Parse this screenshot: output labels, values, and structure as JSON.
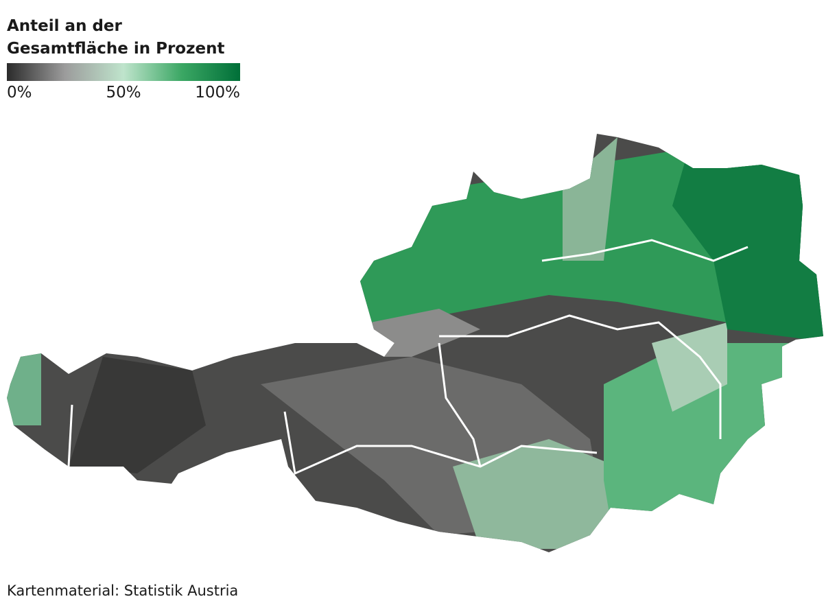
{
  "title_lines": [
    "Anteil an der",
    "Gesamtfläche in Prozent"
  ],
  "legend": {
    "range": [
      0,
      100
    ],
    "colors": [
      "#2b2b2b",
      "#9c9c9c",
      "#bfe4cc",
      "#3ba764",
      "#006f38"
    ],
    "ticks": [
      {
        "value": 0,
        "label": "0%"
      },
      {
        "value": 50,
        "label": "50%"
      },
      {
        "value": 100,
        "label": "100%"
      }
    ]
  },
  "source": "Kartenmaterial: Statistik Austria"
}
